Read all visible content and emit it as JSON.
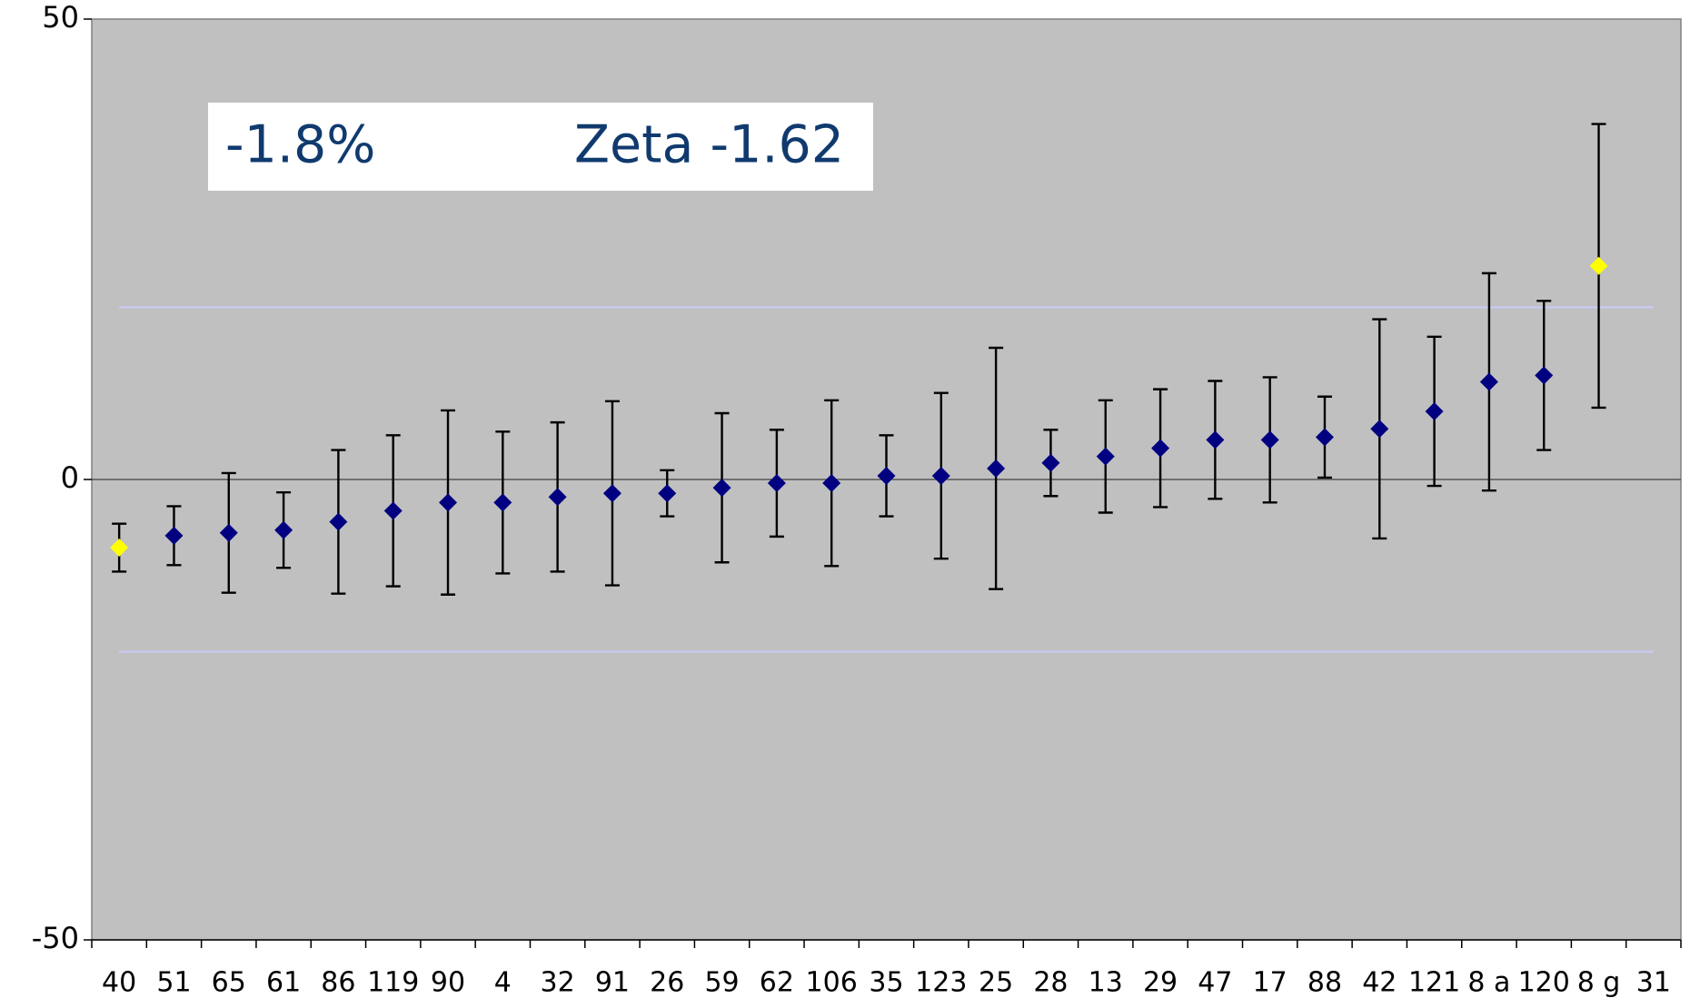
{
  "chart_data": {
    "type": "errorbar",
    "categories": [
      "40",
      "51",
      "65",
      "61",
      "86",
      "119",
      "90",
      "4",
      "32",
      "91",
      "26",
      "59",
      "62",
      "106",
      "35",
      "123",
      "25",
      "28",
      "13",
      "29",
      "47",
      "17",
      "88",
      "42",
      "121",
      "8 a",
      "120",
      "8 g",
      "31"
    ],
    "values": [
      -7.4,
      -6.1,
      -5.8,
      -5.5,
      -4.6,
      -3.4,
      -2.5,
      -2.5,
      -1.9,
      -1.5,
      -1.5,
      -0.9,
      -0.4,
      -0.4,
      0.4,
      0.4,
      1.2,
      1.8,
      2.5,
      3.4,
      4.3,
      4.3,
      4.6,
      5.5,
      7.4,
      10.6,
      11.3,
      23.2,
      null
    ],
    "errors": [
      2.6,
      3.2,
      6.5,
      4.1,
      7.8,
      8.2,
      10,
      7.7,
      8.1,
      10,
      2.5,
      8.1,
      5.8,
      9,
      4.4,
      9,
      13.1,
      3.6,
      6.1,
      6.4,
      6.4,
      6.8,
      4.4,
      11.9,
      8.1,
      11.8,
      8.1,
      15.4,
      null
    ],
    "colors": [
      "#ffff00",
      "#000080",
      "#000080",
      "#000080",
      "#000080",
      "#000080",
      "#000080",
      "#000080",
      "#000080",
      "#000080",
      "#000080",
      "#000080",
      "#000080",
      "#000080",
      "#000080",
      "#000080",
      "#000080",
      "#000080",
      "#000080",
      "#000080",
      "#000080",
      "#000080",
      "#000080",
      "#000080",
      "#000080",
      "#000080",
      "#000080",
      "#ffff00",
      null
    ],
    "reference_lines": [
      18.7,
      -18.7
    ],
    "reference_color": "#c8c8f0",
    "ylim": [
      -50,
      50
    ],
    "yticks": [
      -50,
      0,
      50
    ],
    "annotations": [
      "-1.8%",
      "Zeta -1.62"
    ]
  }
}
